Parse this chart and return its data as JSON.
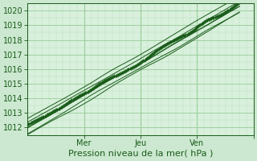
{
  "xlabel": "Pression niveau de la mer( hPa )",
  "bg_color": "#cce8d0",
  "plot_area_color": "#d8f0dc",
  "grid_color": "#99cc99",
  "grid_minor_color": "#bbddbb",
  "plot_color_dark": "#1a5c1a",
  "plot_color_mid": "#2d7a2d",
  "ylim": [
    1011.5,
    1020.5
  ],
  "xlim": [
    0,
    96
  ],
  "yticks": [
    1012,
    1013,
    1014,
    1015,
    1016,
    1017,
    1018,
    1019,
    1020
  ],
  "xtick_positions": [
    24,
    48,
    72,
    96
  ],
  "xtick_labels": [
    "Mer",
    "Jeu",
    "Ven",
    ""
  ],
  "day_lines": [
    24,
    48,
    72
  ]
}
